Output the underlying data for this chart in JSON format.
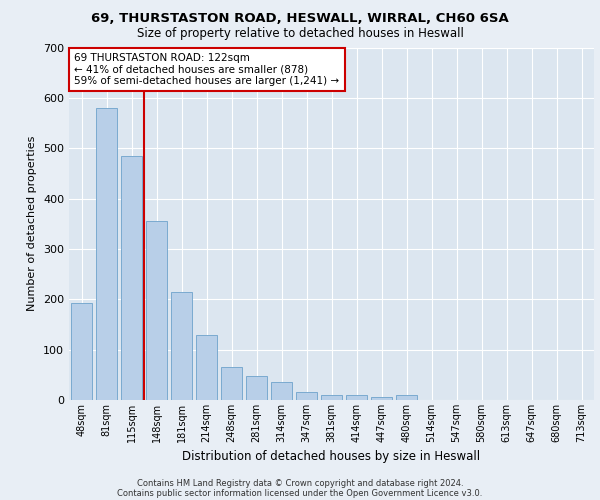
{
  "title_line1": "69, THURSTASTON ROAD, HESWALL, WIRRAL, CH60 6SA",
  "title_line2": "Size of property relative to detached houses in Heswall",
  "xlabel": "Distribution of detached houses by size in Heswall",
  "ylabel": "Number of detached properties",
  "categories": [
    "48sqm",
    "81sqm",
    "115sqm",
    "148sqm",
    "181sqm",
    "214sqm",
    "248sqm",
    "281sqm",
    "314sqm",
    "347sqm",
    "381sqm",
    "414sqm",
    "447sqm",
    "480sqm",
    "514sqm",
    "547sqm",
    "580sqm",
    "613sqm",
    "647sqm",
    "680sqm",
    "713sqm"
  ],
  "values": [
    193,
    580,
    485,
    355,
    215,
    130,
    65,
    48,
    35,
    16,
    10,
    10,
    5,
    10,
    0,
    0,
    0,
    0,
    0,
    0,
    0
  ],
  "bar_color": "#b8cfe8",
  "bar_edge_color": "#7aaad0",
  "highlight_line_color": "#cc0000",
  "annotation_text": "69 THURSTASTON ROAD: 122sqm\n← 41% of detached houses are smaller (878)\n59% of semi-detached houses are larger (1,241) →",
  "annotation_box_color": "#ffffff",
  "annotation_box_edge": "#cc0000",
  "ylim": [
    0,
    700
  ],
  "yticks": [
    0,
    100,
    200,
    300,
    400,
    500,
    600,
    700
  ],
  "footer_line1": "Contains HM Land Registry data © Crown copyright and database right 2024.",
  "footer_line2": "Contains public sector information licensed under the Open Government Licence v3.0.",
  "background_color": "#e8eef5",
  "plot_bg_color": "#dce6f0"
}
